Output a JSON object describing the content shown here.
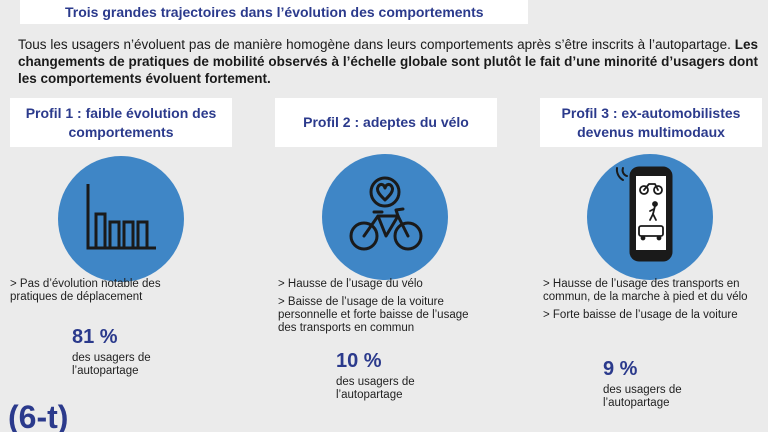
{
  "header": {
    "title": "Trois grandes trajectoires dans l’évolution des comportements"
  },
  "intro": {
    "normal": "Tous les usagers n’évoluent pas de manière homogène dans leurs comportements après s’être inscrits à l’autopartage. ",
    "bold": "Les changements de pratiques de mobilité observés à l’échelle globale sont plutôt le fait d’une minorité d’usagers dont les comportements évoluent fortement."
  },
  "profiles": [
    {
      "title": "Profil 1 : faible évolution des comportements",
      "icon": "bar-chart-icon",
      "bullets": [
        "> Pas d’évolution notable des pratiques de déplacement"
      ],
      "stat": "81 %",
      "stat_label": "des usagers de l’autopartage"
    },
    {
      "title": "Profil 2 : adeptes du vélo",
      "icon": "bicycle-heart-icon",
      "bullets": [
        "> Hausse de l’usage du vélo",
        "> Baisse de l’usage de la voiture personnelle et forte baisse de l’usage des transports en commun"
      ],
      "stat": "10 %",
      "stat_label": "des usagers de l’autopartage"
    },
    {
      "title": "Profil 3 : ex-automobilistes devenus multimodaux",
      "icon": "smartphone-multimodal-icon",
      "bullets": [
        "> Hausse de l’usage des transports en commun, de la marche à pied et du vélo",
        "> Forte baisse de l’usage de la voiture"
      ],
      "stat": "9 %",
      "stat_label": "des usagers de l’autopartage"
    }
  ],
  "logo": {
    "text": "(6-t)"
  },
  "colors": {
    "accent": "#2b3a8c",
    "circle": "#3f86c6",
    "background": "#ebebeb"
  }
}
